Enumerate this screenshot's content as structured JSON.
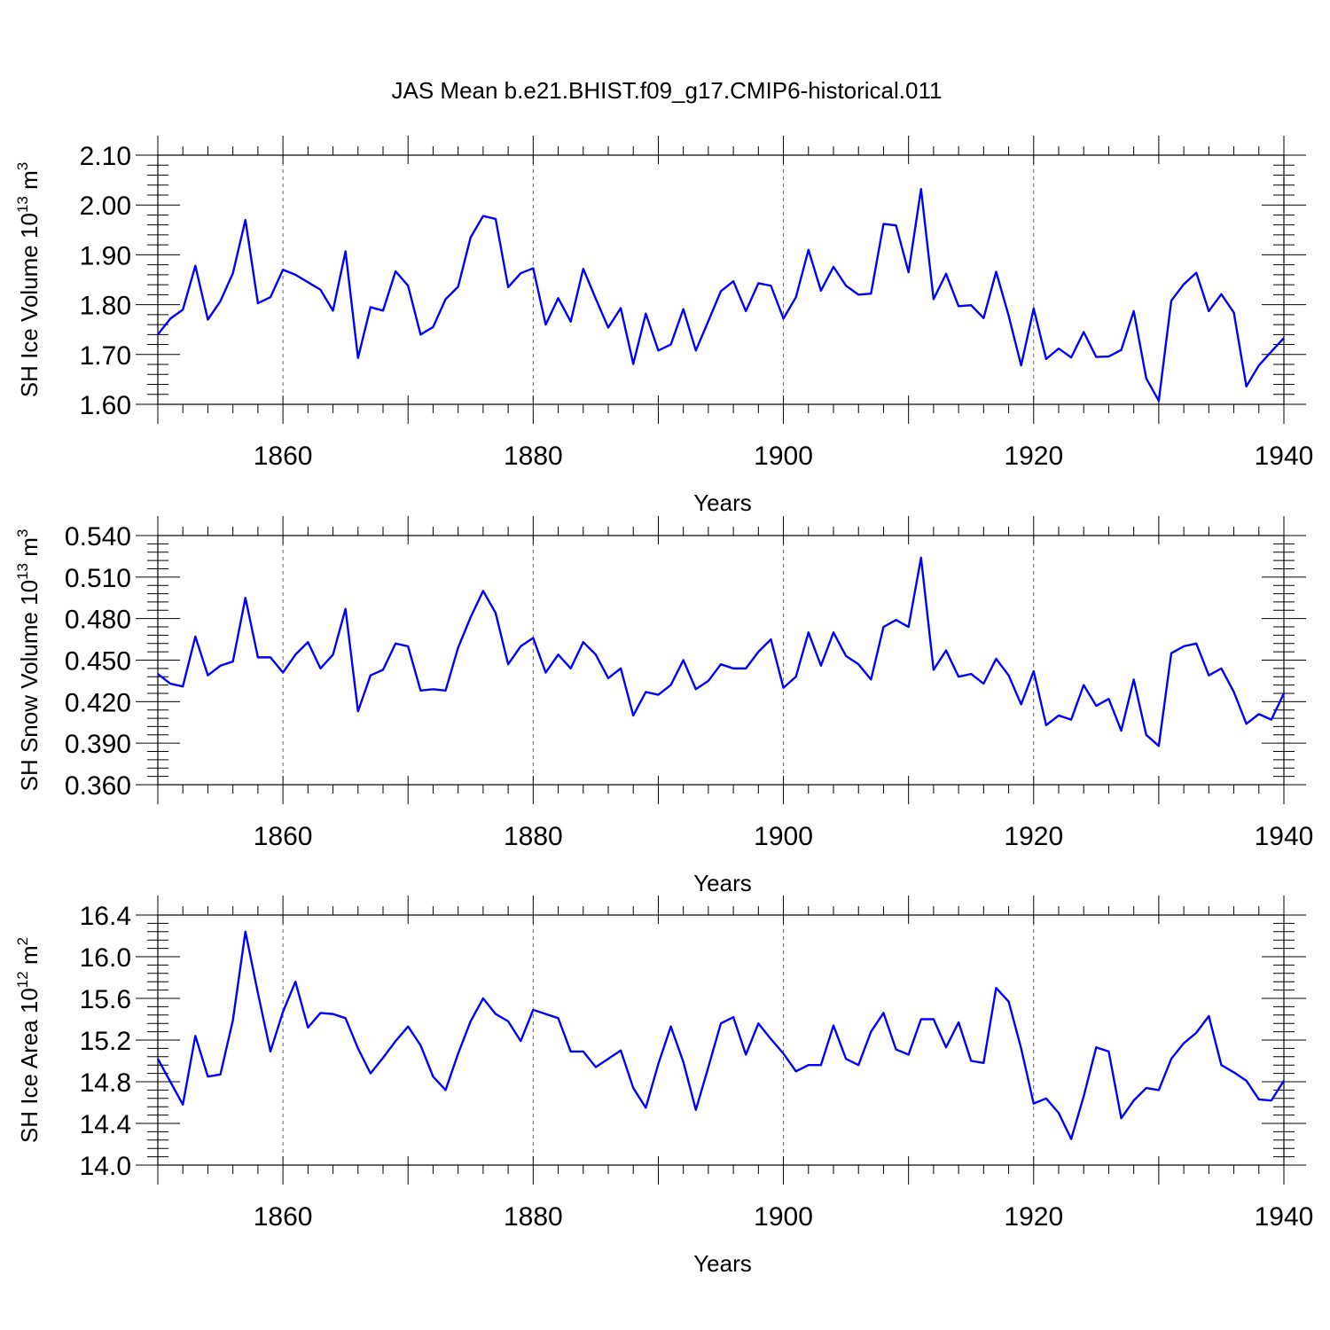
{
  "chart_data": {
    "title": "JAS Mean b.e21.BHIST.f09_g17.CMIP6-historical.011",
    "panels": [
      {
        "type": "line",
        "ylabel": "SH Ice Volume 10",
        "ylabel_exp": "13",
        "ylabel_unit": " m",
        "ylabel_unit_exp": "3",
        "xlabel": "Years",
        "xlim": [
          1850,
          1940
        ],
        "ylim": [
          1.6,
          2.1
        ],
        "yticks": [
          "1.60",
          "1.70",
          "1.80",
          "1.90",
          "2.00",
          "2.10"
        ],
        "xticks": [
          "1860",
          "1880",
          "1900",
          "1920",
          "1940"
        ],
        "grid_x": [
          1860,
          1880,
          1900,
          1920
        ],
        "x_start": 1850,
        "color": "#0000ff",
        "values": [
          1.74,
          1.772,
          1.79,
          1.878,
          1.77,
          1.807,
          1.863,
          1.97,
          1.803,
          1.815,
          1.87,
          1.86,
          1.845,
          1.83,
          1.788,
          1.907,
          1.693,
          1.795,
          1.788,
          1.867,
          1.838,
          1.74,
          1.755,
          1.811,
          1.836,
          1.935,
          1.978,
          1.972,
          1.835,
          1.863,
          1.873,
          1.76,
          1.813,
          1.766,
          1.872,
          1.812,
          1.754,
          1.793,
          1.681,
          1.782,
          1.708,
          1.72,
          1.791,
          1.708,
          1.767,
          1.827,
          1.847,
          1.787,
          1.843,
          1.838,
          1.772,
          1.815,
          1.91,
          1.828,
          1.876,
          1.838,
          1.82,
          1.822,
          1.962,
          1.959,
          1.865,
          2.032,
          1.811,
          1.862,
          1.797,
          1.799,
          1.773,
          1.866,
          1.778,
          1.678,
          1.792,
          1.691,
          1.712,
          1.694,
          1.745,
          1.695,
          1.696,
          1.709,
          1.787,
          1.652,
          1.607,
          1.808,
          1.841,
          1.864,
          1.787,
          1.821,
          1.784,
          1.636,
          1.678,
          1.706,
          1.733
        ]
      },
      {
        "type": "line",
        "ylabel": "SH Snow Volume 10",
        "ylabel_exp": "13",
        "ylabel_unit": " m",
        "ylabel_unit_exp": "3",
        "xlabel": "Years",
        "xlim": [
          1850,
          1940
        ],
        "ylim": [
          0.36,
          0.54
        ],
        "yticks": [
          "0.360",
          "0.390",
          "0.420",
          "0.450",
          "0.480",
          "0.510",
          "0.540"
        ],
        "xticks": [
          "1860",
          "1880",
          "1900",
          "1920",
          "1940"
        ],
        "grid_x": [
          1860,
          1880,
          1900,
          1920
        ],
        "x_start": 1850,
        "color": "#0000ff",
        "values": [
          0.44,
          0.433,
          0.431,
          0.467,
          0.439,
          0.446,
          0.449,
          0.495,
          0.452,
          0.452,
          0.441,
          0.454,
          0.463,
          0.444,
          0.454,
          0.487,
          0.413,
          0.439,
          0.443,
          0.462,
          0.46,
          0.428,
          0.429,
          0.428,
          0.459,
          0.481,
          0.5,
          0.484,
          0.447,
          0.46,
          0.466,
          0.441,
          0.454,
          0.444,
          0.463,
          0.454,
          0.437,
          0.444,
          0.41,
          0.427,
          0.425,
          0.432,
          0.45,
          0.429,
          0.435,
          0.447,
          0.444,
          0.444,
          0.456,
          0.465,
          0.43,
          0.438,
          0.47,
          0.446,
          0.47,
          0.453,
          0.447,
          0.436,
          0.474,
          0.479,
          0.474,
          0.524,
          0.443,
          0.457,
          0.438,
          0.44,
          0.433,
          0.451,
          0.439,
          0.418,
          0.442,
          0.403,
          0.41,
          0.407,
          0.432,
          0.417,
          0.422,
          0.399,
          0.436,
          0.396,
          0.388,
          0.455,
          0.46,
          0.462,
          0.439,
          0.444,
          0.427,
          0.404,
          0.411,
          0.407,
          0.426
        ]
      },
      {
        "type": "line",
        "ylabel": "SH Ice Area 10",
        "ylabel_exp": "12",
        "ylabel_unit": " m",
        "ylabel_unit_exp": "2",
        "xlabel": "Years",
        "xlim": [
          1850,
          1940
        ],
        "ylim": [
          14.0,
          16.4
        ],
        "yticks": [
          "14.0",
          "14.4",
          "14.8",
          "15.2",
          "15.6",
          "16.0",
          "16.4"
        ],
        "xticks": [
          "1860",
          "1880",
          "1900",
          "1920",
          "1940"
        ],
        "grid_x": [
          1860,
          1880,
          1900,
          1920
        ],
        "x_start": 1850,
        "color": "#0000ff",
        "values": [
          15.02,
          14.8,
          14.58,
          15.24,
          14.85,
          14.87,
          15.39,
          16.24,
          15.65,
          15.09,
          15.47,
          15.76,
          15.32,
          15.46,
          15.45,
          15.41,
          15.12,
          14.88,
          15.03,
          15.19,
          15.33,
          15.15,
          14.85,
          14.72,
          15.07,
          15.38,
          15.6,
          15.45,
          15.38,
          15.19,
          15.49,
          15.45,
          15.41,
          15.09,
          15.09,
          14.94,
          15.02,
          15.1,
          14.74,
          14.55,
          14.97,
          15.33,
          14.99,
          14.53,
          14.94,
          15.36,
          15.42,
          15.06,
          15.36,
          15.21,
          15.07,
          14.9,
          14.96,
          14.96,
          15.34,
          15.02,
          14.96,
          15.28,
          15.46,
          15.11,
          15.06,
          15.4,
          15.4,
          15.13,
          15.37,
          15.0,
          14.98,
          15.7,
          15.57,
          15.12,
          14.59,
          14.64,
          14.5,
          14.25,
          14.66,
          15.13,
          15.09,
          14.45,
          14.62,
          14.74,
          14.72,
          15.02,
          15.17,
          15.27,
          15.43,
          14.96,
          14.89,
          14.81,
          14.63,
          14.62,
          14.81
        ]
      }
    ]
  }
}
